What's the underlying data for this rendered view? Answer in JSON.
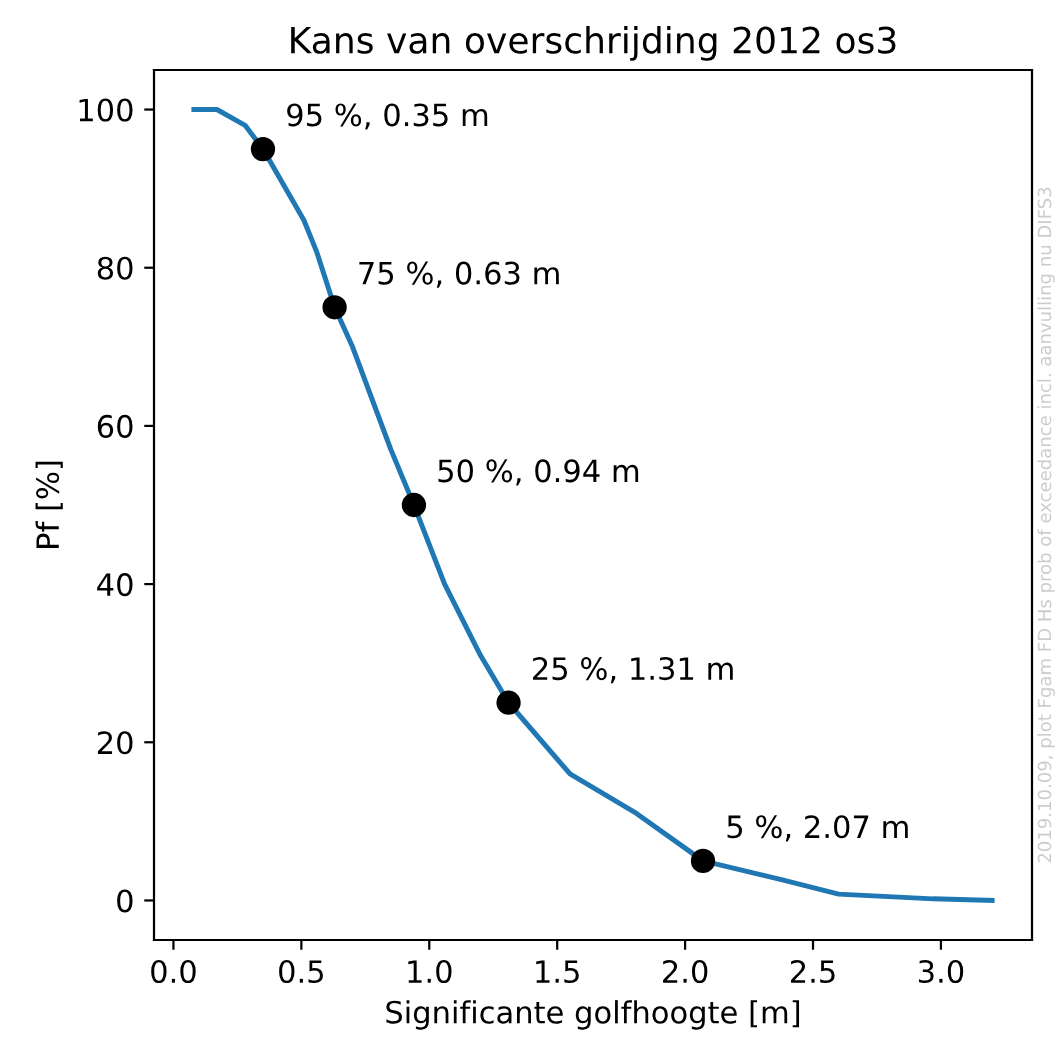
{
  "chart_data": {
    "type": "line",
    "title": "Kans van overschrijding 2012 os3",
    "xlabel": "Significante golfhoogte [m]",
    "ylabel": "Pf [%]",
    "xlim": [
      -0.076,
      3.356
    ],
    "ylim": [
      -5,
      105
    ],
    "xticks": [
      {
        "value": 0,
        "label": "0.0"
      },
      0.5,
      {
        "value": 1,
        "label": "1.0"
      },
      1.5,
      {
        "value": 2,
        "label": "2.0"
      },
      2.5,
      {
        "value": 3,
        "label": "3.0"
      }
    ],
    "yticks": [
      0,
      20,
      40,
      60,
      80,
      100
    ],
    "grid": false,
    "series": [
      {
        "color": "#1f77b4",
        "marker": "none",
        "line_style": "solid",
        "x": [
          0.08,
          0.17,
          0.28,
          0.35,
          0.51,
          0.56,
          0.63,
          0.7,
          0.85,
          0.94,
          1.06,
          1.2,
          1.31,
          1.55,
          1.81,
          2.07,
          2.38,
          2.6,
          2.97,
          3.2
        ],
        "values": [
          100,
          100,
          98,
          95,
          86,
          82,
          75,
          70,
          57,
          50,
          40,
          31,
          25,
          16,
          11,
          5,
          2.6,
          0.8,
          0.2,
          0
        ]
      },
      {
        "type": "scatter",
        "color": "#000000",
        "marker": "circle",
        "x": [
          0.35,
          0.63,
          0.94,
          1.31,
          2.07
        ],
        "values": [
          95,
          75,
          50,
          25,
          5
        ]
      }
    ],
    "annotations": [
      {
        "text": "95 %, 0.35 m",
        "x": 0.35,
        "y": 95
      },
      {
        "text": "75 %, 0.63 m",
        "x": 0.63,
        "y": 75
      },
      {
        "text": "50 %, 0.94 m",
        "x": 0.94,
        "y": 50
      },
      {
        "text": "25 %, 1.31 m",
        "x": 1.31,
        "y": 25
      },
      {
        "text": "5 %, 2.07 m",
        "x": 2.07,
        "y": 5
      },
      "2019.10.09, plot Fgam FD Hs prob of exceedance incl. aanvulling nu DIFS3"
    ]
  }
}
